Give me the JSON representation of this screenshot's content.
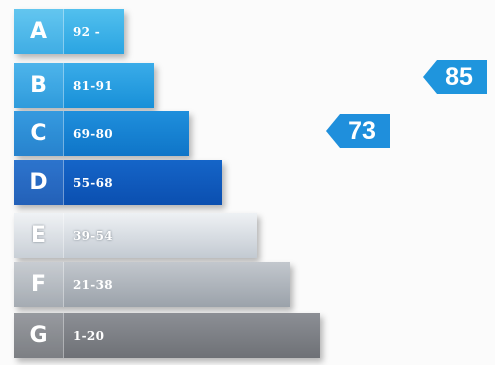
{
  "bands": [
    {
      "letter": "A",
      "range": "92 -"
    },
    {
      "letter": "B",
      "range": "81-91"
    },
    {
      "letter": "C",
      "range": "69-80"
    },
    {
      "letter": "D",
      "range": "55-68"
    },
    {
      "letter": "E",
      "range": "39-54"
    },
    {
      "letter": "F",
      "range": "21-38"
    },
    {
      "letter": "G",
      "range": "1-20"
    }
  ],
  "markers": [
    {
      "value": "85",
      "color": "#1f95dd"
    },
    {
      "value": "73",
      "color": "#1f8fdc"
    }
  ],
  "colors": {
    "a": "#2aa4e2",
    "b": "#1890d8",
    "c": "#0f75c8",
    "d": "#0b4fb0",
    "e": "#c3cad2",
    "f": "#9ba2aa",
    "g": "#6e7176"
  }
}
